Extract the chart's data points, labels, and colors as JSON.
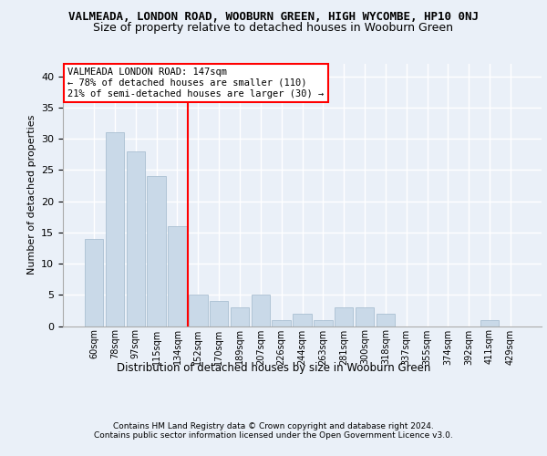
{
  "title": "VALMEADA, LONDON ROAD, WOOBURN GREEN, HIGH WYCOMBE, HP10 0NJ",
  "subtitle": "Size of property relative to detached houses in Wooburn Green",
  "xlabel": "Distribution of detached houses by size in Wooburn Green",
  "ylabel": "Number of detached properties",
  "categories": [
    "60sqm",
    "78sqm",
    "97sqm",
    "115sqm",
    "134sqm",
    "152sqm",
    "170sqm",
    "189sqm",
    "207sqm",
    "226sqm",
    "244sqm",
    "263sqm",
    "281sqm",
    "300sqm",
    "318sqm",
    "337sqm",
    "355sqm",
    "374sqm",
    "392sqm",
    "411sqm",
    "429sqm"
  ],
  "values": [
    14,
    31,
    28,
    24,
    16,
    5,
    4,
    3,
    5,
    1,
    2,
    1,
    3,
    3,
    2,
    0,
    0,
    0,
    0,
    1,
    0
  ],
  "bar_color": "#c9d9e8",
  "bar_edge_color": "#a0b8cc",
  "vline_x_index": 5,
  "vline_color": "red",
  "annotation_text": "VALMEADA LONDON ROAD: 147sqm\n← 78% of detached houses are smaller (110)\n21% of semi-detached houses are larger (30) →",
  "annotation_box_color": "white",
  "annotation_box_edge": "red",
  "ylim": [
    0,
    42
  ],
  "yticks": [
    0,
    5,
    10,
    15,
    20,
    25,
    30,
    35,
    40
  ],
  "footer1": "Contains HM Land Registry data © Crown copyright and database right 2024.",
  "footer2": "Contains public sector information licensed under the Open Government Licence v3.0.",
  "bg_color": "#eaf0f8",
  "plot_bg_color": "#eaf0f8",
  "grid_color": "white"
}
